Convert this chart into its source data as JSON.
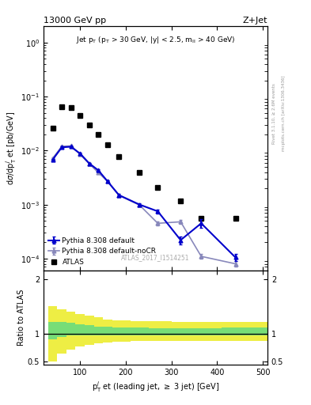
{
  "title_left": "13000 GeV pp",
  "title_right": "Z+Jet",
  "annotation": "Jet p$_\\mathrm{T}$ (p$_\\mathrm{T}$ > 30 GeV, |y| < 2.5, m$_\\mathrm{ll}$ > 40 GeV)",
  "watermark": "ATLAS_2017_I1514251",
  "right_label_top": "Rivet 3.1.10, ≥ 2.6M events",
  "right_label_bottom": "mcplots.cern.ch [arXiv:1306.3436]",
  "xlabel": "p$_\\mathrm{T}^{j}$ et (leading jet, ≥ 3 jet) [GeV]",
  "ylabel_main": "dσ/dp$_\\mathrm{T}^{j}$ et [pb/GeV]",
  "ylabel_ratio": "Ratio to ATLAS",
  "atlas_x": [
    40,
    60,
    80,
    100,
    120,
    140,
    160,
    185,
    230,
    270,
    320,
    365,
    440
  ],
  "atlas_y": [
    0.026,
    0.065,
    0.062,
    0.044,
    0.03,
    0.02,
    0.013,
    0.0077,
    0.004,
    0.0021,
    0.00115,
    0.00055,
    0.00055
  ],
  "pythia_x": [
    40,
    60,
    80,
    100,
    120,
    140,
    160,
    185,
    230,
    270,
    320,
    365,
    440
  ],
  "pythia_y": [
    0.0068,
    0.0115,
    0.0118,
    0.0088,
    0.0058,
    0.0043,
    0.0027,
    0.0015,
    0.001,
    0.00075,
    0.00022,
    0.00045,
    0.000105
  ],
  "pythia_yerr": [
    0.0002,
    0.0003,
    0.0003,
    0.0002,
    0.0002,
    0.0002,
    0.0001,
    7e-05,
    6e-05,
    7e-05,
    4e-05,
    8e-05,
    1.5e-05
  ],
  "nocr_x": [
    40,
    60,
    80,
    100,
    120,
    140,
    160,
    185,
    230,
    270,
    320,
    365,
    440
  ],
  "nocr_y": [
    0.0072,
    0.012,
    0.0122,
    0.0085,
    0.0057,
    0.0039,
    0.0027,
    0.00148,
    0.00098,
    0.00045,
    0.00048,
    0.00011,
    8e-05
  ],
  "nocr_yerr": [
    0.0002,
    0.0003,
    0.0003,
    0.0002,
    0.0002,
    0.0001,
    0.0001,
    6e-05,
    5e-05,
    4e-05,
    4e-05,
    1.2e-05,
    1e-05
  ],
  "ratio_x_edges": [
    30,
    50,
    70,
    90,
    110,
    130,
    150,
    170,
    210,
    250,
    300,
    350,
    410,
    510
  ],
  "green_band_lo": [
    0.9,
    0.95,
    0.97,
    0.97,
    0.97,
    0.97,
    0.97,
    0.97,
    0.97,
    0.97,
    0.97,
    0.97,
    0.97
  ],
  "green_band_hi": [
    1.22,
    1.22,
    1.2,
    1.18,
    1.16,
    1.14,
    1.13,
    1.12,
    1.12,
    1.11,
    1.11,
    1.11,
    1.12
  ],
  "yellow_band_lo": [
    0.5,
    0.65,
    0.72,
    0.77,
    0.8,
    0.83,
    0.85,
    0.86,
    0.87,
    0.87,
    0.88,
    0.88,
    0.88
  ],
  "yellow_band_hi": [
    1.5,
    1.45,
    1.4,
    1.37,
    1.33,
    1.3,
    1.27,
    1.25,
    1.24,
    1.23,
    1.22,
    1.22,
    1.22
  ],
  "atlas_color": "#000000",
  "pythia_color": "#0000cc",
  "nocr_color": "#8888bb",
  "green_color": "#77dd77",
  "yellow_color": "#eeee44",
  "ylim_main": [
    6e-05,
    2.0
  ],
  "xlim": [
    20,
    510
  ],
  "ylim_ratio": [
    0.45,
    2.15
  ],
  "ratio_yticks": [
    0.5,
    1.0,
    2.0
  ],
  "ratio_yticklabels": [
    "0.5",
    "1",
    "2"
  ]
}
